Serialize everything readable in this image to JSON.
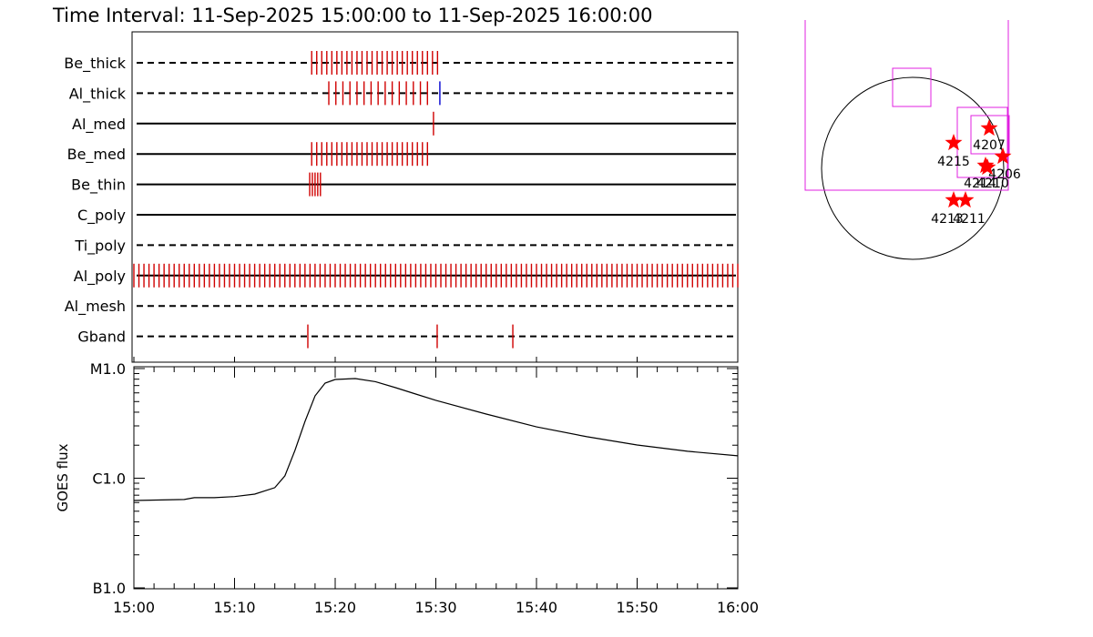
{
  "chart_data": [
    {
      "type": "event",
      "title": "Time Interval: 11-Sep-2025 15:00:00 to 11-Sep-2025 16:00:00",
      "xlim": [
        "15:00",
        "16:00"
      ],
      "channels": [
        {
          "name": "Be_thick",
          "line": "dashed",
          "series": [
            {
              "color": "#d00000",
              "times": [
                "15:17:40",
                "15:18:10",
                "15:18:40",
                "15:19:10",
                "15:19:40",
                "15:20:10",
                "15:20:40",
                "15:21:10",
                "15:21:40",
                "15:22:10",
                "15:22:40",
                "15:23:10",
                "15:23:40",
                "15:24:10",
                "15:24:40",
                "15:25:10",
                "15:25:40",
                "15:26:10",
                "15:26:40",
                "15:27:10",
                "15:27:40",
                "15:28:10",
                "15:28:40",
                "15:29:10",
                "15:29:40",
                "15:30:10"
              ]
            }
          ]
        },
        {
          "name": "Al_thick",
          "line": "dashed",
          "series": [
            {
              "color": "#d00000",
              "times": [
                "15:19:22",
                "15:20:04",
                "15:20:46",
                "15:21:28",
                "15:22:10",
                "15:22:52",
                "15:23:34",
                "15:24:16",
                "15:24:58",
                "15:25:40",
                "15:26:22",
                "15:27:04",
                "15:27:46",
                "15:28:28",
                "15:29:10"
              ]
            },
            {
              "color": "#0000d0",
              "times": [
                "15:30:24"
              ]
            }
          ]
        },
        {
          "name": "Al_med",
          "line": "solid",
          "series": [
            {
              "color": "#d00000",
              "times": [
                "15:29:46"
              ]
            }
          ]
        },
        {
          "name": "Be_med",
          "line": "solid",
          "series": [
            {
              "color": "#d00000",
              "times": [
                "15:17:40",
                "15:18:10",
                "15:18:40",
                "15:19:10",
                "15:19:40",
                "15:20:10",
                "15:20:40",
                "15:21:10",
                "15:21:40",
                "15:22:10",
                "15:22:40",
                "15:23:10",
                "15:23:40",
                "15:24:10",
                "15:24:40",
                "15:25:10",
                "15:25:40",
                "15:26:10",
                "15:26:40",
                "15:27:10",
                "15:27:40",
                "15:28:10",
                "15:28:40",
                "15:29:10"
              ]
            }
          ]
        },
        {
          "name": "Be_thin",
          "line": "solid",
          "series": [
            {
              "color": "#d00000",
              "times": [
                "15:17:28",
                "15:17:44",
                "15:18:00",
                "15:18:16",
                "15:18:32"
              ]
            }
          ]
        },
        {
          "name": "C_poly",
          "line": "solid",
          "series": []
        },
        {
          "name": "Ti_poly",
          "line": "dashed",
          "series": []
        },
        {
          "name": "Al_poly",
          "line": "solid",
          "series": [
            {
              "color": "#d00000",
              "times": [
                "15:00:00",
                "15:00:30",
                "15:01:00",
                "15:01:30",
                "15:02:00",
                "15:02:30",
                "15:03:00",
                "15:03:30",
                "15:04:00",
                "15:04:30",
                "15:05:00",
                "15:05:30",
                "15:06:00",
                "15:06:30",
                "15:07:00",
                "15:07:30",
                "15:08:00",
                "15:08:30",
                "15:09:00",
                "15:09:30",
                "15:10:00",
                "15:10:30",
                "15:11:00",
                "15:11:30",
                "15:12:00",
                "15:12:30",
                "15:13:00",
                "15:13:30",
                "15:14:00",
                "15:14:30",
                "15:15:00",
                "15:15:30",
                "15:16:00",
                "15:16:30",
                "15:17:00",
                "15:17:30",
                "15:18:00",
                "15:18:30",
                "15:19:00",
                "15:19:30",
                "15:20:00",
                "15:20:30",
                "15:21:00",
                "15:21:30",
                "15:22:00",
                "15:22:30",
                "15:23:00",
                "15:23:30",
                "15:24:00",
                "15:24:30",
                "15:25:00",
                "15:25:30",
                "15:26:00",
                "15:26:30",
                "15:27:00",
                "15:27:30",
                "15:28:00",
                "15:28:30",
                "15:29:00",
                "15:29:30",
                "15:30:00",
                "15:30:30",
                "15:31:00",
                "15:31:30",
                "15:32:00",
                "15:32:30",
                "15:33:00",
                "15:33:30",
                "15:34:00",
                "15:34:30",
                "15:35:00",
                "15:35:30",
                "15:36:00",
                "15:36:30",
                "15:37:00",
                "15:37:30",
                "15:38:00",
                "15:38:30",
                "15:39:00",
                "15:39:30",
                "15:40:00",
                "15:40:30",
                "15:41:00",
                "15:41:30",
                "15:42:00",
                "15:42:30",
                "15:43:00",
                "15:43:30",
                "15:44:00",
                "15:44:30",
                "15:45:00",
                "15:45:30",
                "15:46:00",
                "15:46:30",
                "15:47:00",
                "15:47:30",
                "15:48:00",
                "15:48:30",
                "15:49:00",
                "15:49:30",
                "15:50:00",
                "15:50:30",
                "15:51:00",
                "15:51:30",
                "15:52:00",
                "15:52:30",
                "15:53:00",
                "15:53:30",
                "15:54:00",
                "15:54:30",
                "15:55:00",
                "15:55:30",
                "15:56:00",
                "15:56:30",
                "15:57:00",
                "15:57:30",
                "15:58:00",
                "15:58:30",
                "15:59:00",
                "15:59:30",
                "16:00:00"
              ]
            }
          ]
        },
        {
          "name": "Al_mesh",
          "line": "dashed",
          "series": []
        },
        {
          "name": "Gband",
          "line": "dashed",
          "series": [
            {
              "color": "#d00000",
              "times": [
                "15:17:17",
                "15:30:08",
                "15:37:39"
              ]
            }
          ]
        }
      ]
    },
    {
      "type": "line",
      "ylabel": "GOES flux",
      "x": [
        "15:00",
        "15:05",
        "15:06",
        "15:08",
        "15:10",
        "15:12",
        "15:14",
        "15:15",
        "15:16",
        "15:17",
        "15:18",
        "15:19",
        "15:20",
        "15:22",
        "15:24",
        "15:26",
        "15:28",
        "15:30",
        "15:35",
        "15:40",
        "15:45",
        "15:50",
        "15:55",
        "16:00"
      ],
      "values": [
        6.26e-07,
        6.4e-07,
        6.64e-07,
        6.64e-07,
        6.8e-07,
        7.16e-07,
        8.19e-07,
        1.05e-06,
        1.79e-06,
        3.3e-06,
        5.64e-06,
        7.36e-06,
        7.95e-06,
        8.1e-06,
        7.6e-06,
        6.7e-06,
        5.86e-06,
        5.13e-06,
        3.85e-06,
        2.94e-06,
        2.39e-06,
        2.01e-06,
        1.76e-06,
        1.6e-06
      ],
      "color": "#000000",
      "ylog": true,
      "ylim": [
        1e-07,
        1e-05
      ],
      "yticks": [
        {
          "value": 1e-07,
          "label": "B1.0"
        },
        {
          "value": 1e-06,
          "label": "C1.0"
        },
        {
          "value": 1e-05,
          "label": "M1.0"
        }
      ],
      "xlim": [
        "15:00",
        "16:00"
      ],
      "xticks": [
        "15:00",
        "15:10",
        "15:20",
        "15:30",
        "15:40",
        "15:50",
        "16:00"
      ]
    }
  ],
  "disk_map": {
    "labels": [
      "4207",
      "4215",
      "4206",
      "4214",
      "4210",
      "4213",
      "4211"
    ]
  }
}
